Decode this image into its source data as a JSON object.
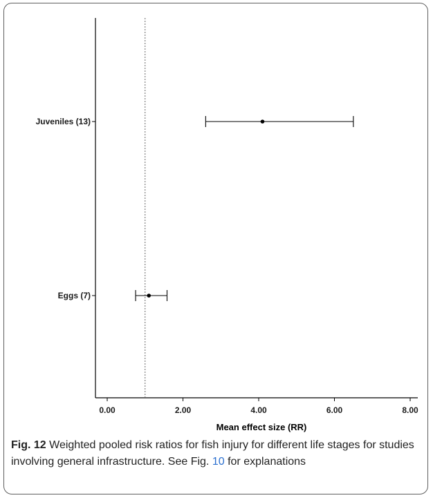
{
  "chart_data": {
    "type": "forest",
    "categories": [
      "Juveniles (13)",
      "Eggs (7)"
    ],
    "estimates": [
      4.1,
      1.1
    ],
    "ci_lower": [
      2.6,
      0.75
    ],
    "ci_upper": [
      6.5,
      1.58
    ],
    "reference_line": 1.0,
    "xlabel": "Mean effect size (RR)",
    "xlim": [
      -0.4,
      8.3
    ],
    "xticks": [
      0,
      2,
      4,
      6,
      8
    ],
    "xtick_labels": [
      "0.00",
      "2.00",
      "4.00",
      "6.00",
      "8.00"
    ]
  },
  "caption": {
    "label": "Fig. 12",
    "text_before": "Weighted pooled risk ratios for fish injury for different life stages for studies involving general infrastructure. See Fig.",
    "ref": "10",
    "text_after": "for explanations"
  }
}
